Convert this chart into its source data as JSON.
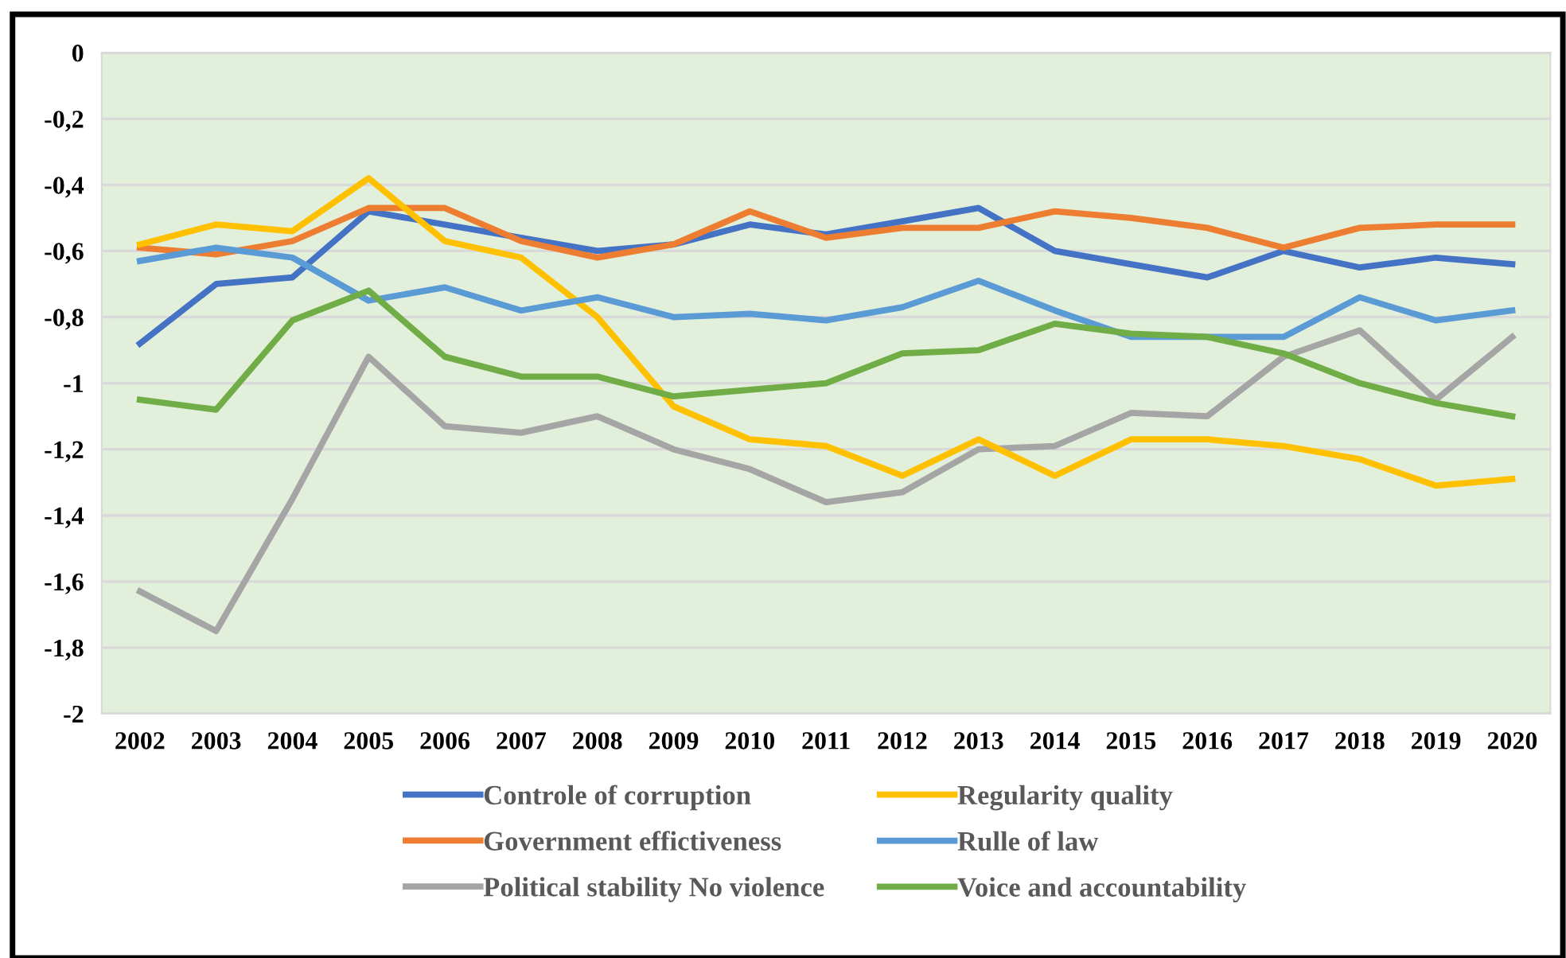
{
  "chart_data": {
    "type": "line",
    "categories": [
      "2002",
      "2003",
      "2004",
      "2005",
      "2006",
      "2007",
      "2008",
      "2009",
      "2010",
      "2011",
      "2012",
      "2013",
      "2014",
      "2015",
      "2016",
      "2017",
      "2018",
      "2019",
      "2020"
    ],
    "series": [
      {
        "name": "Controle of corruption",
        "color": "#4472c4",
        "values": [
          -0.88,
          -0.7,
          -0.68,
          -0.48,
          -0.52,
          -0.56,
          -0.6,
          -0.58,
          -0.52,
          -0.55,
          -0.51,
          -0.47,
          -0.6,
          -0.64,
          -0.68,
          -0.6,
          -0.65,
          -0.62,
          -0.64
        ]
      },
      {
        "name": "Government effictiveness",
        "color": "#ed7d31",
        "values": [
          -0.59,
          -0.61,
          -0.57,
          -0.47,
          -0.47,
          -0.57,
          -0.62,
          -0.58,
          -0.48,
          -0.56,
          -0.53,
          -0.53,
          -0.48,
          -0.5,
          -0.53,
          -0.59,
          -0.53,
          -0.52,
          -0.52
        ]
      },
      {
        "name": "Political stability No violence",
        "color": "#a5a5a5",
        "values": [
          -1.63,
          -1.75,
          -1.35,
          -0.92,
          -1.13,
          -1.15,
          -1.1,
          -1.2,
          -1.26,
          -1.36,
          -1.33,
          -1.2,
          -1.19,
          -1.09,
          -1.1,
          -0.92,
          -0.84,
          -1.05,
          -0.86
        ]
      },
      {
        "name": "Regularity quality",
        "color": "#ffc000",
        "values": [
          -0.58,
          -0.52,
          -0.54,
          -0.38,
          -0.57,
          -0.62,
          -0.8,
          -1.07,
          -1.17,
          -1.19,
          -1.28,
          -1.17,
          -1.28,
          -1.17,
          -1.17,
          -1.19,
          -1.23,
          -1.31,
          -1.29
        ]
      },
      {
        "name": "Rulle of law",
        "color": "#5b9bd5",
        "values": [
          -0.63,
          -0.59,
          -0.62,
          -0.75,
          -0.71,
          -0.78,
          -0.74,
          -0.8,
          -0.79,
          -0.81,
          -0.77,
          -0.69,
          -0.78,
          -0.86,
          -0.86,
          -0.86,
          -0.74,
          -0.81,
          -0.78
        ]
      },
      {
        "name": "Voice and accountability",
        "color": "#70ad47",
        "values": [
          -1.05,
          -1.08,
          -0.81,
          -0.72,
          -0.92,
          -0.98,
          -0.98,
          -1.04,
          -1.02,
          -1.0,
          -0.91,
          -0.9,
          -0.82,
          -0.85,
          -0.86,
          -0.91,
          -1.0,
          -1.06,
          -1.1
        ]
      }
    ],
    "ylim": [
      -2,
      0
    ],
    "yticks": [
      0,
      {
        "value": -0.2,
        "label": "-0,2"
      },
      {
        "value": -0.4,
        "label": "-0,4"
      },
      {
        "value": -0.6,
        "label": "-0,6"
      },
      {
        "value": -0.8,
        "label": "-0,8"
      },
      -1,
      {
        "value": -1.2,
        "label": "-1,2"
      },
      {
        "value": -1.4,
        "label": "-1,4"
      },
      {
        "value": -1.6,
        "label": "-1,6"
      },
      {
        "value": -1.8,
        "label": "-1,8"
      },
      -2
    ],
    "grid": "y",
    "legend": "bottom",
    "marker": "none",
    "line_style": "solid"
  }
}
